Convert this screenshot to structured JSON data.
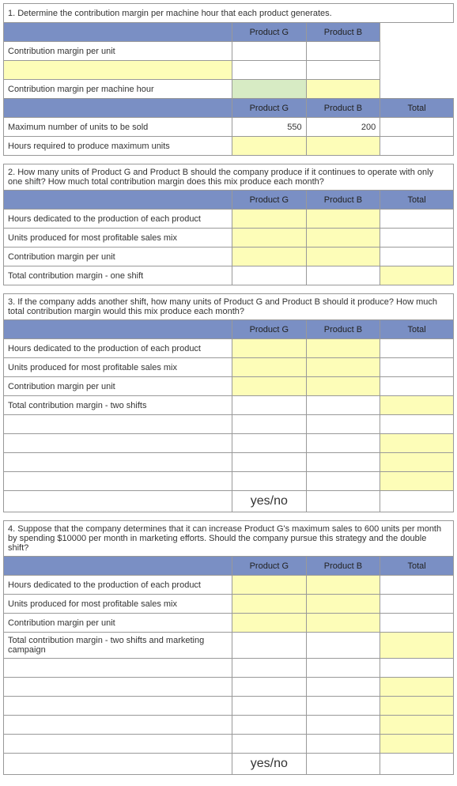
{
  "q1": {
    "text": "1. Determine the contribution margin per machine hour that each product generates.",
    "header": {
      "g": "Product G",
      "b": "Product B"
    },
    "rows": {
      "cm_unit": "Contribution margin per unit",
      "cm_hour": "Contribution margin per machine hour"
    },
    "header2": {
      "g": "Product G",
      "b": "Product B",
      "t": "Total"
    },
    "rows2": {
      "max_units": {
        "label": "Maximum number of units to be sold",
        "g": "550",
        "b": "200"
      },
      "hours_req": "Hours required to produce maximum units"
    }
  },
  "q2": {
    "text": "2. How many units of Product G and Product B should the company produce if it continues to operate with only one shift? How much total contribution margin does this mix produce each month?",
    "header": {
      "g": "Product G",
      "b": "Product B",
      "t": "Total"
    },
    "rows": {
      "hours": "Hours dedicated to the production of each product",
      "units": "Units produced for most profitable sales mix",
      "cm_unit": "Contribution margin per unit",
      "total": "Total contribution margin - one shift"
    }
  },
  "q3": {
    "text": "3. If the company adds another shift, how many units of Product G and Product B should it produce? How much total contribution margin would this mix produce each month?",
    "header": {
      "g": "Product G",
      "b": "Product B",
      "t": "Total"
    },
    "rows": {
      "hours": "Hours dedicated to the production of each product",
      "units": "Units produced for most profitable sales mix",
      "cm_unit": "Contribution margin per unit",
      "total": "Total contribution margin - two shifts"
    },
    "yesno": "yes/no"
  },
  "q4": {
    "text": "4. Suppose that the company determines that it can increase Product G's maximum sales to 600 units per month by spending $10000 per month in marketing efforts. Should the company pursue this strategy and the double shift?",
    "header": {
      "g": "Product G",
      "b": "Product B",
      "t": "Total"
    },
    "rows": {
      "hours": "Hours dedicated to the production of each product",
      "units": "Units produced for most profitable sales mix",
      "cm_unit": "Contribution margin per unit",
      "total": "Total contribution margin - two shifts and marketing campaign"
    },
    "yesno": "yes/no"
  }
}
